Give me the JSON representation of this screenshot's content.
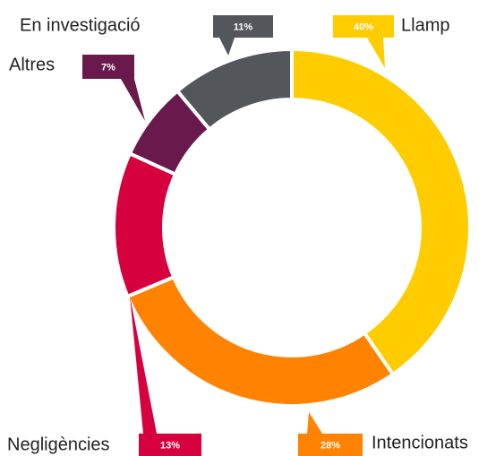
{
  "chart_data": {
    "type": "donut",
    "categories": [
      "Llamp",
      "Intencionats",
      "Negligències",
      "Altres",
      "En investigació"
    ],
    "values": [
      40,
      28,
      13,
      7,
      11
    ],
    "value_labels": [
      "40%",
      "28%",
      "13%",
      "7%",
      "11%"
    ],
    "colors": [
      "#ffcc00",
      "#ff8200",
      "#d7003f",
      "#69194b",
      "#53575c"
    ]
  }
}
